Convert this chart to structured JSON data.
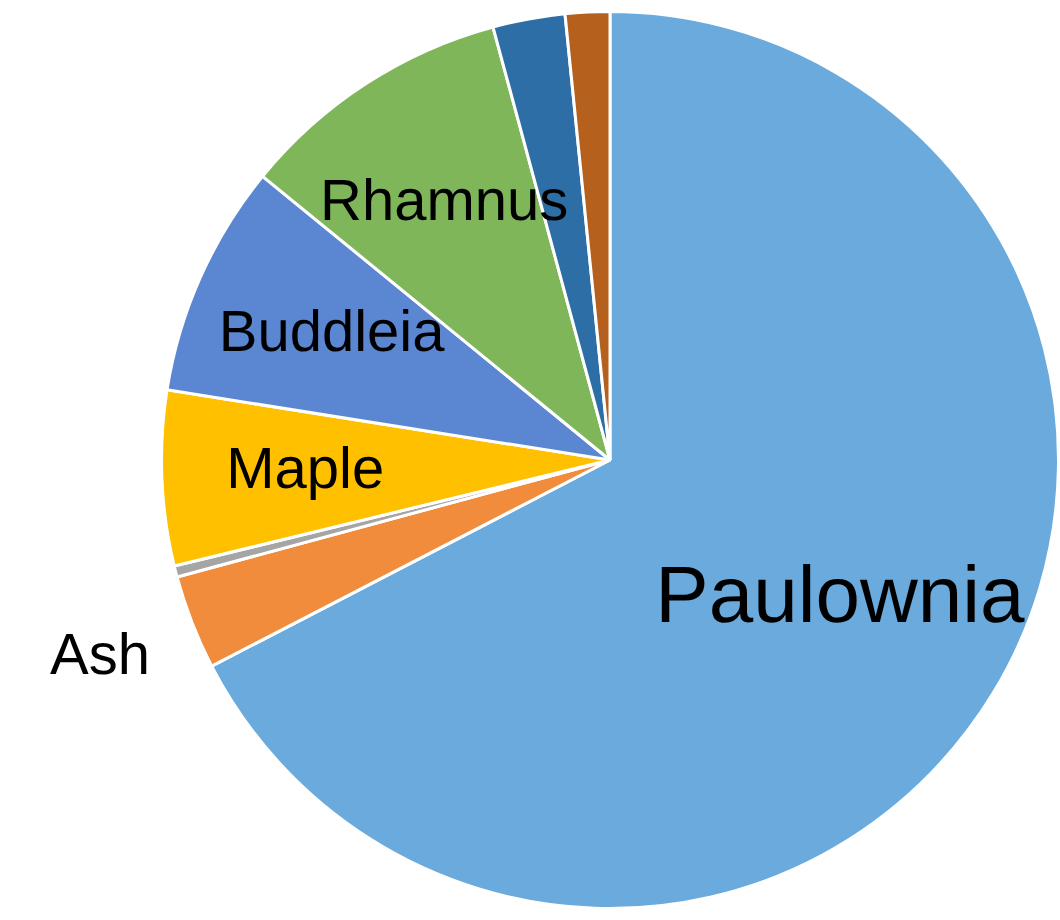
{
  "chart_data": {
    "type": "pie",
    "categories": [
      "Paulownia",
      "Ash",
      null,
      "Maple",
      "Buddleia",
      "Rhamnus",
      null,
      null
    ],
    "values": [
      67.4,
      3.4,
      0.4,
      6.3,
      8.4,
      9.9,
      2.6,
      1.6
    ],
    "colors": [
      "#6aaadc",
      "#f08c3c",
      "#a5a5a5",
      "#ffc000",
      "#5b87d2",
      "#7fb65a",
      "#2e6ea6",
      "#b5601c"
    ],
    "legend": false
  }
}
